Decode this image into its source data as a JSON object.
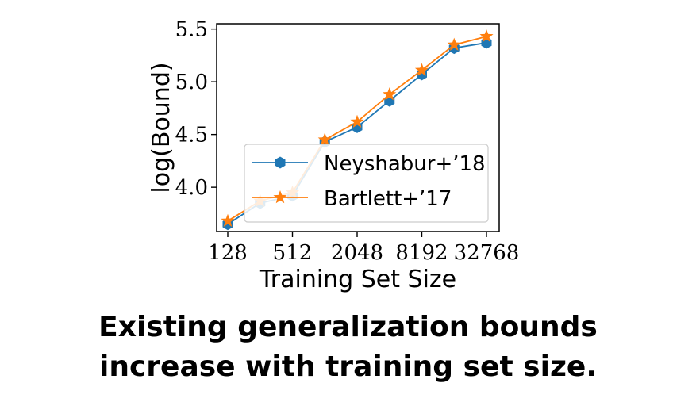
{
  "chart_data": {
    "type": "line",
    "xlabel": "Training Set Size",
    "ylabel": "log(Bound)",
    "x": [
      128,
      256,
      512,
      1024,
      2048,
      4096,
      8192,
      16384,
      32768
    ],
    "x_scale": "log2",
    "x_ticks": [
      "128",
      "512",
      "2048",
      "8192",
      "32768"
    ],
    "ylim": [
      3.58,
      5.55
    ],
    "y_ticks": [
      "4.0",
      "4.5",
      "5.0",
      "5.5"
    ],
    "grid": false,
    "legend_position": "center-right",
    "series": [
      {
        "name": "Neyshabur+’18",
        "marker": "hexagon",
        "color": "#1f77b4",
        "values": [
          3.65,
          3.85,
          3.92,
          4.43,
          4.57,
          4.82,
          5.07,
          5.32,
          5.37
        ]
      },
      {
        "name": "Bartlett+’17",
        "marker": "star",
        "color": "#ff7f0e",
        "values": [
          3.68,
          3.87,
          3.95,
          4.45,
          4.62,
          4.88,
          5.11,
          5.35,
          5.43
        ]
      }
    ]
  },
  "caption": {
    "line1": "Existing generalization bounds",
    "line2": "increase with training set size."
  }
}
